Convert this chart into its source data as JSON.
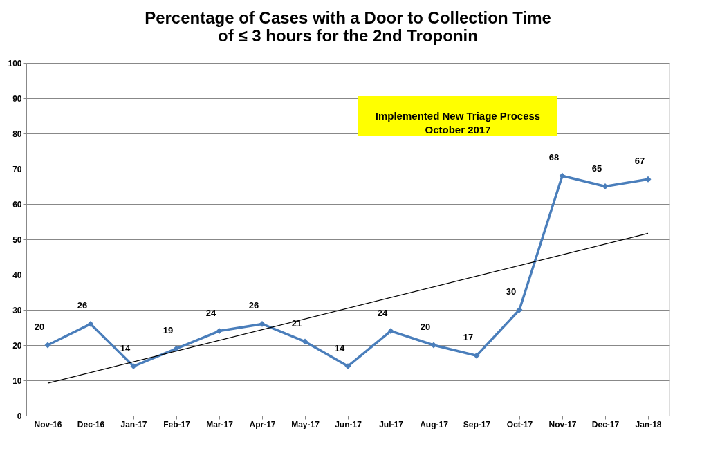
{
  "chart_data": {
    "type": "line",
    "title": "Percentage of Cases with a Door to Collection Time\nof ≤ 3 hours for the 2nd Troponin",
    "categories": [
      "Nov-16",
      "Dec-16",
      "Jan-17",
      "Feb-17",
      "Mar-17",
      "Apr-17",
      "May-17",
      "Jun-17",
      "Jul-17",
      "Aug-17",
      "Sep-17",
      "Oct-17",
      "Nov-17",
      "Dec-17",
      "Jan-18"
    ],
    "series": [
      {
        "color": "#4a7ebb",
        "values": [
          20,
          26,
          14,
          19,
          24,
          26,
          21,
          14,
          24,
          20,
          17,
          30,
          68,
          65,
          67
        ],
        "marker": "diamond",
        "data_labels": true
      },
      {
        "type": "line",
        "color": "#000000",
        "x": [
          "Nov-16",
          "Jan-18"
        ],
        "values": [
          9.2,
          51.7
        ],
        "marker": "none"
      }
    ],
    "ylim": [
      0,
      100
    ],
    "yticks": [
      0,
      10,
      20,
      30,
      40,
      50,
      60,
      70,
      80,
      90,
      100
    ],
    "grid": "y",
    "annotations": [
      "Implemented New Triage Process\nOctober 2017"
    ]
  }
}
